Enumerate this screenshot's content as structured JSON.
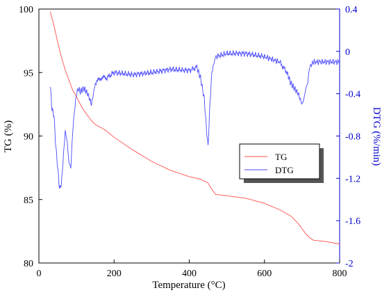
{
  "chart_data": {
    "type": "line",
    "xlabel": "Temperature (°C)",
    "ylabel_left": "TG (%)",
    "ylabel_right": "DTG (%/min)",
    "xlim": [
      0,
      800
    ],
    "ylim_left": [
      80,
      100
    ],
    "ylim_right": [
      -2,
      0.4
    ],
    "x_ticks": [
      "0",
      "200",
      "400",
      "600",
      "800"
    ],
    "y_left_ticks": [
      "80",
      "85",
      "90",
      "95",
      "100"
    ],
    "y_right_ticks": [
      "0.4",
      "0",
      "-0.4",
      "-0.8",
      "-1.2",
      "-1.6",
      "-2"
    ],
    "grid": false,
    "legend_position": "center-right",
    "colors": {
      "TG": "#ff4d4d",
      "DTG": "#4a4aff",
      "left_axis": "#000000",
      "right_axis": "#0000cc"
    },
    "series": [
      {
        "name": "TG",
        "axis": "left",
        "x": [
          30,
          40,
          50,
          60,
          70,
          80,
          90,
          100,
          110,
          120,
          130,
          140,
          150,
          175,
          200,
          250,
          300,
          350,
          400,
          430,
          450,
          460,
          470,
          500,
          550,
          600,
          640,
          670,
          690,
          700,
          710,
          720,
          730,
          760,
          800
        ],
        "y": [
          99.8,
          98.7,
          97.4,
          96.2,
          95.2,
          94.4,
          93.6,
          93.1,
          92.5,
          92.0,
          91.6,
          91.2,
          90.9,
          90.5,
          89.9,
          88.9,
          88.0,
          87.3,
          86.8,
          86.6,
          86.3,
          85.8,
          85.4,
          85.3,
          85.1,
          84.7,
          84.2,
          83.7,
          83.1,
          82.7,
          82.3,
          82.0,
          81.8,
          81.7,
          81.5
        ]
      },
      {
        "name": "DTG",
        "axis": "right",
        "x": [
          30,
          35,
          40,
          45,
          50,
          55,
          60,
          65,
          70,
          75,
          80,
          85,
          90,
          95,
          100,
          105,
          110,
          120,
          130,
          140,
          150,
          165,
          180,
          200,
          250,
          300,
          350,
          400,
          420,
          430,
          440,
          445,
          450,
          455,
          460,
          470,
          500,
          550,
          600,
          640,
          660,
          670,
          680,
          690,
          700,
          705,
          710,
          715,
          720,
          730,
          800
        ],
        "y": [
          -0.32,
          -0.55,
          -0.6,
          -0.9,
          -1.1,
          -1.3,
          -1.25,
          -1.0,
          -0.75,
          -0.85,
          -1.05,
          -1.1,
          -0.75,
          -0.55,
          -0.4,
          -0.35,
          -0.38,
          -0.35,
          -0.4,
          -0.5,
          -0.3,
          -0.25,
          -0.25,
          -0.2,
          -0.22,
          -0.2,
          -0.17,
          -0.18,
          -0.15,
          -0.25,
          -0.45,
          -0.7,
          -0.9,
          -0.5,
          -0.2,
          -0.05,
          -0.02,
          -0.02,
          -0.05,
          -0.1,
          -0.2,
          -0.3,
          -0.35,
          -0.4,
          -0.5,
          -0.45,
          -0.35,
          -0.3,
          -0.15,
          -0.1,
          -0.1
        ]
      }
    ]
  }
}
